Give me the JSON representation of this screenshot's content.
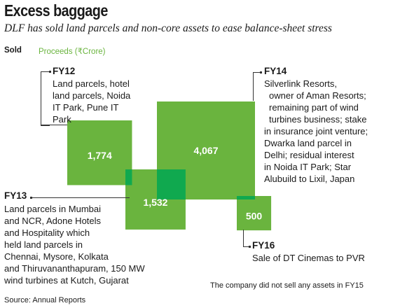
{
  "title": "Excess baggage",
  "subtitle": "DLF has sold land parcels and non-core assets to ease balance-sheet stress",
  "legend": {
    "sold": "Sold",
    "proceeds": "Proceeds (₹Crore)"
  },
  "colors": {
    "square": "#6ab43e",
    "overlap": "#10a94f",
    "text": "#1a1a1a"
  },
  "labels": {
    "fy12": {
      "year": "FY12",
      "lines": [
        "Land parcels, hotel",
        "land parcels, Noida",
        "IT Park, Pune IT",
        "Park"
      ]
    },
    "fy13": {
      "year": "FY13",
      "lines": [
        "Land parcels in Mumbai",
        "and NCR, Adone Hotels",
        "and Hospitality which",
        "held land parcels in",
        "Chennai, Mysore, Kolkata",
        "and Thiruvananthapuram, 150 MW",
        "wind turbines at Kutch, Gujarat"
      ]
    },
    "fy14": {
      "year": "FY14",
      "lines": [
        "Silverlink Resorts,",
        "owner of Aman Resorts;",
        "remaining part of wind",
        "turbines business; stake",
        "in insurance joint venture;",
        "Dwarka land parcel in",
        "Delhi; residual interest",
        "in Noida IT Park; Star",
        "Alubuild to Lixil, Japan"
      ]
    },
    "fy16": {
      "year": "FY16",
      "lines": [
        "Sale of DT Cinemas to PVR"
      ]
    }
  },
  "note": "The company did not sell any assets in FY15",
  "source": "Source: Annual Reports",
  "chart_data": {
    "type": "proportional-area squares",
    "title": "Excess baggage",
    "subtitle": "DLF has sold land parcels and non-core assets to ease balance-sheet stress",
    "unit": "₹Crore",
    "series": [
      {
        "year": "FY12",
        "value": 1774
      },
      {
        "year": "FY13",
        "value": 1532
      },
      {
        "year": "FY14",
        "value": 4067
      },
      {
        "year": "FY16",
        "value": 500
      }
    ],
    "value_labels": [
      "1,774",
      "1,532",
      "4,067",
      "500"
    ],
    "note": "The company did not sell any assets in FY15"
  }
}
